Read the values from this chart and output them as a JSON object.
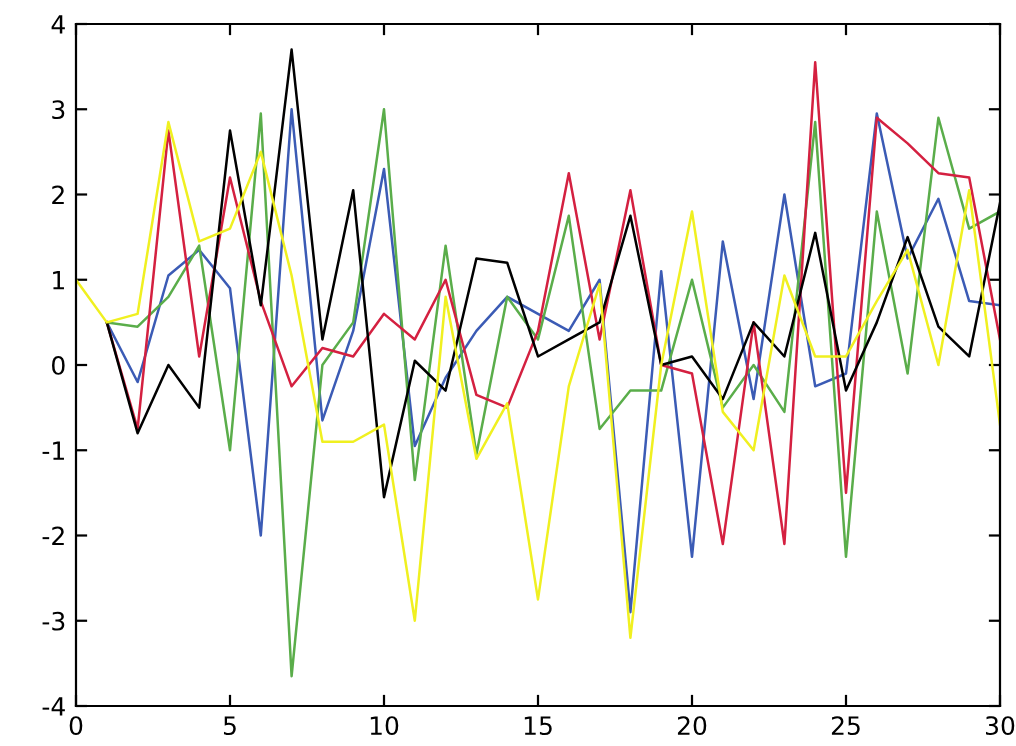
{
  "chart_data": {
    "type": "line",
    "xlim": [
      0,
      30
    ],
    "ylim": [
      -4,
      4
    ],
    "xticks": [
      0,
      5,
      10,
      15,
      20,
      25,
      30
    ],
    "yticks": [
      -4,
      -3,
      -2,
      -1,
      0,
      1,
      2,
      3,
      4
    ],
    "marker": "none",
    "line_style": "solid",
    "series": [
      {
        "color": "#3b5bb5",
        "x": [
          1,
          2,
          3,
          4,
          5,
          6,
          7,
          8,
          9,
          10,
          11,
          12,
          13,
          14,
          15,
          16,
          17,
          18,
          19,
          20,
          21,
          22,
          23,
          24,
          25,
          26,
          27,
          28,
          29,
          30
        ],
        "values": [
          0.5,
          -0.2,
          1.05,
          1.35,
          0.9,
          -2.0,
          3.0,
          -0.65,
          0.4,
          2.3,
          -0.95,
          -0.15,
          0.4,
          0.8,
          0.6,
          0.4,
          1.0,
          -2.9,
          1.1,
          -2.25,
          1.45,
          -0.4,
          2.0,
          -0.25,
          -0.1,
          2.95,
          1.25,
          1.95,
          0.75,
          0.7
        ]
      },
      {
        "color": "#5aad4a",
        "x": [
          1,
          2,
          3,
          4,
          5,
          6,
          7,
          8,
          9,
          10,
          11,
          12,
          13,
          14,
          15,
          16,
          17,
          18,
          19,
          20,
          21,
          22,
          23,
          24,
          25,
          26,
          27,
          28,
          29,
          30
        ],
        "values": [
          0.5,
          0.45,
          0.8,
          1.4,
          -1.0,
          2.95,
          -3.65,
          0.0,
          0.5,
          3.0,
          -1.35,
          1.4,
          -1.05,
          0.8,
          0.3,
          1.75,
          -0.75,
          -0.3,
          -0.3,
          1.0,
          -0.5,
          0.0,
          -0.55,
          2.85,
          -2.25,
          1.8,
          -0.1,
          2.9,
          1.6,
          1.8
        ]
      },
      {
        "color": "#d42040",
        "x": [
          1,
          2,
          3,
          4,
          5,
          6,
          7,
          8,
          9,
          10,
          11,
          12,
          13,
          14,
          15,
          16,
          17,
          18,
          19,
          20,
          21,
          22,
          23,
          24,
          25,
          26,
          27,
          28,
          29,
          30
        ],
        "values": [
          0.5,
          -0.75,
          2.75,
          0.1,
          2.2,
          0.75,
          -0.25,
          0.2,
          0.1,
          0.6,
          0.3,
          1.0,
          -0.35,
          -0.5,
          0.4,
          2.25,
          0.3,
          2.05,
          0.0,
          -0.1,
          -2.1,
          0.5,
          -2.1,
          3.55,
          -1.5,
          2.9,
          2.6,
          2.25,
          2.2,
          0.3
        ]
      },
      {
        "color": "#000000",
        "x": [
          1,
          2,
          3,
          4,
          5,
          6,
          7,
          8,
          9,
          10,
          11,
          12,
          13,
          14,
          15,
          16,
          17,
          18,
          19,
          20,
          21,
          22,
          23,
          24,
          25,
          26,
          27,
          28,
          29,
          30
        ],
        "values": [
          0.5,
          -0.8,
          0.0,
          -0.5,
          2.75,
          0.7,
          3.7,
          0.3,
          2.05,
          -1.55,
          0.05,
          -0.3,
          1.25,
          1.2,
          0.1,
          0.3,
          0.5,
          1.75,
          0.0,
          0.1,
          -0.4,
          0.5,
          0.1,
          1.55,
          -0.3,
          0.5,
          1.5,
          0.45,
          0.1,
          1.9
        ]
      },
      {
        "color": "#f0f020",
        "x": [
          0,
          1,
          2,
          3,
          4,
          5,
          6,
          7,
          8,
          9,
          10,
          11,
          12,
          13,
          14,
          15,
          16,
          17,
          18,
          19,
          20,
          21,
          22,
          23,
          24,
          25,
          26,
          27,
          28,
          29,
          30
        ],
        "values": [
          1.0,
          0.5,
          0.6,
          2.85,
          1.45,
          1.6,
          2.5,
          1.05,
          -0.9,
          -0.9,
          -0.7,
          -3.0,
          0.8,
          -1.1,
          -0.45,
          -2.75,
          -0.25,
          0.95,
          -3.2,
          0.0,
          1.8,
          -0.55,
          -1.0,
          1.05,
          0.1,
          0.1,
          0.75,
          1.35,
          0.0,
          2.05,
          -0.7
        ]
      }
    ]
  }
}
